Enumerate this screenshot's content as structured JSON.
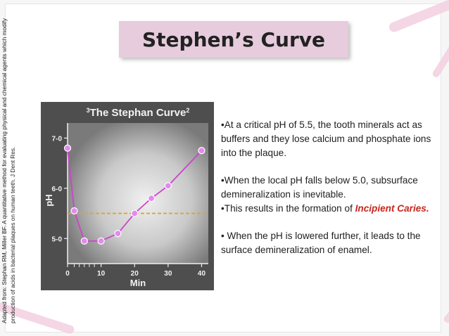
{
  "slide": {
    "title": "Stephen’s Curve",
    "citation_line1": "Adapted from: Stephan RM, Miller BF. A quantitative method for evaluating physical and chemical agents which modify",
    "citation_line2": "production of acids in bacterial plaques on human teeth. J Dent Res.",
    "bullets": {
      "b1": "•At a critical pH of 5.5, the tooth minerals act as buffers and they lose calcium and phosphate ions into the plaque.",
      "b2": "•When the local pH falls below 5.0, subsurface demineralization is inevitable.",
      "b3_pre": "•This results in the formation of ",
      "b3_em": "Incipient Caries.",
      "b4": "• When the pH is lowered further, it leads to the surface demineralization of enamel."
    }
  },
  "colors": {
    "line": "#cc44cc",
    "marker": "#e28aee",
    "critical_line": "#e0a42a",
    "highlight": "#c8261e"
  },
  "chart_data": {
    "type": "line",
    "title_sup_pre": "3",
    "title": "The Stephan Curve",
    "title_sup_post": "2",
    "xlabel": "Min",
    "ylabel": "pH",
    "xlim": [
      0,
      42
    ],
    "ylim": [
      4.5,
      7.3
    ],
    "x_ticks": [
      "0",
      "10",
      "20",
      "30",
      "40"
    ],
    "y_ticks": [
      "7-0",
      "6-0",
      "5-0"
    ],
    "y_tick_values": [
      7.0,
      6.0,
      5.0
    ],
    "critical_ph": 5.5,
    "x": [
      0,
      2,
      5,
      10,
      15,
      20,
      25,
      30,
      40
    ],
    "y": [
      6.8,
      5.55,
      4.95,
      4.95,
      5.1,
      5.5,
      5.8,
      6.05,
      6.75
    ]
  }
}
